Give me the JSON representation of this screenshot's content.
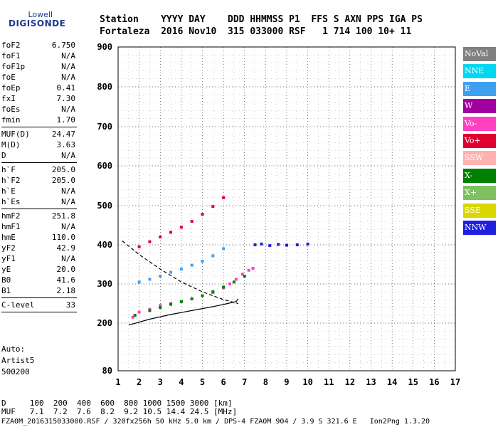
{
  "logo": {
    "line1": "Lowell",
    "line2": "DIGISONDE"
  },
  "header": {
    "line1": "Station    YYYY DAY    DDD HHMMSS P1  FFS S AXN PPS IGA PS",
    "line2": "Fortaleza  2016 Nov10  315 033000 RSF   1 714 100 10+ 11"
  },
  "params": {
    "group1": [
      {
        "name": "foF2",
        "value": "6.750"
      },
      {
        "name": "foF1",
        "value": "N/A"
      },
      {
        "name": "foF1p",
        "value": "N/A"
      },
      {
        "name": "foE",
        "value": "N/A"
      },
      {
        "name": "foEp",
        "value": "0.41"
      },
      {
        "name": "fxI",
        "value": "7.30"
      },
      {
        "name": "foEs",
        "value": "N/A"
      },
      {
        "name": "fmin",
        "value": "1.70"
      }
    ],
    "group2": [
      {
        "name": "MUF(D)",
        "value": "24.47"
      },
      {
        "name": "M(D)",
        "value": "3.63"
      },
      {
        "name": "D",
        "value": "N/A"
      }
    ],
    "group3": [
      {
        "name": "h`F",
        "value": "205.0"
      },
      {
        "name": "h`F2",
        "value": "205.0"
      },
      {
        "name": "h`E",
        "value": "N/A"
      },
      {
        "name": "h`Es",
        "value": "N/A"
      }
    ],
    "group4": [
      {
        "name": "hmF2",
        "value": "251.8"
      },
      {
        "name": "hmF1",
        "value": "N/A"
      },
      {
        "name": "hmE",
        "value": "110.0"
      },
      {
        "name": "yF2",
        "value": "42.9"
      },
      {
        "name": "yF1",
        "value": "N/A"
      },
      {
        "name": "yE",
        "value": "20.0"
      },
      {
        "name": "B0",
        "value": "41.6"
      },
      {
        "name": "B1",
        "value": "2.18"
      }
    ],
    "group5": [
      {
        "name": "C-level",
        "value": "33"
      }
    ]
  },
  "misc": {
    "auto": "Auto:",
    "artist": "Artist5",
    "version": "500200"
  },
  "legend": [
    {
      "label": "NoVal",
      "bg": "#808080",
      "fg": "#ffffff"
    },
    {
      "label": "NNE",
      "bg": "#00d8f0",
      "fg": "#ffffff"
    },
    {
      "label": "E",
      "bg": "#40a0f0",
      "fg": "#ffffff"
    },
    {
      "label": "W",
      "bg": "#a000a0",
      "fg": "#ffffff"
    },
    {
      "label": "Vo-",
      "bg": "#ff40c0",
      "fg": "#ffffff"
    },
    {
      "label": "Vo+",
      "bg": "#e00030",
      "fg": "#ffffff"
    },
    {
      "label": "SSW",
      "bg": "#ffb0b0",
      "fg": "#ffffff"
    },
    {
      "label": "X-",
      "bg": "#008000",
      "fg": "#ffffff"
    },
    {
      "label": "X+",
      "bg": "#80c060",
      "fg": "#ffffff"
    },
    {
      "label": "SSE",
      "bg": "#d8d800",
      "fg": "#ffffff"
    },
    {
      "label": "NNW",
      "bg": "#2020e0",
      "fg": "#ffffff"
    }
  ],
  "footer": {
    "d_line": "D     100  200  400  600  800 1000 1500 3000 [km]",
    "muf_line": "MUF   7.1  7.2  7.6  8.2  9.2 10.5 14.4 24.5 [MHz]",
    "file_line": "FZA0M_2016315033000.RSF / 320fx256h 50 kHz 5.0 km / DPS-4 FZA0M 904 / 3.9 S 321.6 E   Ion2Png 1.3.20"
  },
  "chart_data": {
    "type": "scatter",
    "title": "",
    "xlabel": "",
    "ylabel": "",
    "xlim": [
      1,
      17
    ],
    "ylim": [
      80,
      900
    ],
    "x_ticks": [
      "1",
      "2",
      "3",
      "4",
      "5",
      "6",
      "7",
      "8",
      "9",
      "10",
      "11",
      "12",
      "13",
      "14",
      "15",
      "16",
      "17"
    ],
    "y_ticks": [
      "80",
      "200",
      "300",
      "400",
      "500",
      "600",
      "700",
      "800",
      "900"
    ],
    "y_tick_values": [
      80,
      200,
      300,
      400,
      500,
      600,
      700,
      800,
      900
    ],
    "grid": true,
    "series": [
      {
        "name": "Vo-",
        "color": "#ff40c0",
        "x": [
          1.7,
          2.0,
          2.5,
          3.0,
          3.5,
          4.0,
          4.5,
          5.0,
          5.5,
          6.0,
          6.3,
          6.6,
          6.9,
          7.2,
          7.4
        ],
        "y": [
          215,
          228,
          235,
          245,
          250,
          255,
          262,
          270,
          278,
          290,
          300,
          312,
          325,
          335,
          340
        ]
      },
      {
        "name": "X-",
        "color": "#008000",
        "x": [
          1.8,
          2.5,
          3.0,
          3.5,
          4.0,
          4.5,
          5.0,
          5.5,
          6.0,
          6.5,
          7.0
        ],
        "y": [
          220,
          232,
          240,
          248,
          255,
          262,
          270,
          280,
          292,
          305,
          320
        ]
      },
      {
        "name": "E",
        "color": "#40a0f0",
        "x": [
          2.0,
          2.5,
          3.0,
          3.5,
          4.0,
          4.5,
          5.0,
          5.5,
          6.0
        ],
        "y": [
          305,
          312,
          320,
          330,
          338,
          348,
          358,
          372,
          390
        ]
      },
      {
        "name": "Vo+",
        "color": "#e00030",
        "x": [
          2.0,
          2.5,
          3.0,
          3.5,
          4.0,
          4.5,
          5.0,
          5.5,
          6.0
        ],
        "y": [
          395,
          408,
          420,
          432,
          445,
          460,
          478,
          498,
          520
        ]
      },
      {
        "name": "NNW",
        "color": "#2020e0",
        "x": [
          7.5,
          7.8,
          8.2,
          8.6,
          9.0,
          9.5,
          10.0
        ],
        "y": [
          400,
          402,
          398,
          401,
          399,
          400,
          402
        ]
      }
    ],
    "curves": [
      {
        "name": "dashed",
        "color": "#000000",
        "x": [
          1.2,
          2.0,
          3.0,
          4.0,
          5.0,
          6.0,
          6.7
        ],
        "y": [
          410,
          375,
          338,
          305,
          280,
          260,
          250
        ]
      },
      {
        "name": "solid",
        "color": "#000000",
        "x": [
          1.5,
          2.5,
          3.5,
          4.5,
          5.5,
          6.2,
          6.6,
          6.7
        ],
        "y": [
          195,
          210,
          222,
          232,
          242,
          250,
          255,
          262
        ]
      }
    ]
  }
}
